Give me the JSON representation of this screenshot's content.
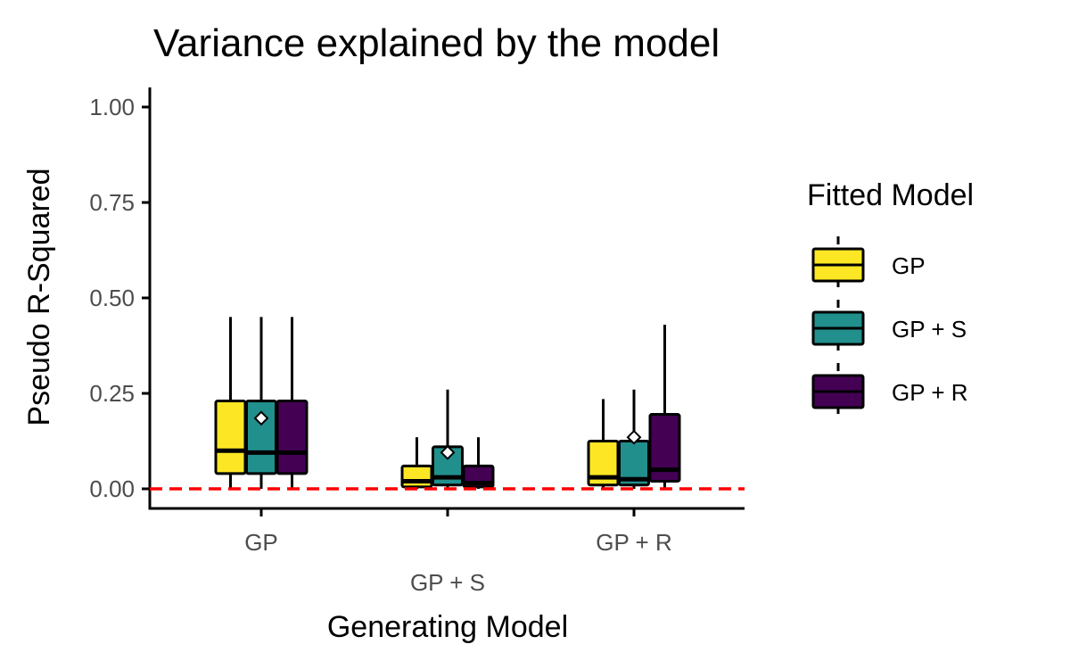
{
  "chart_data": {
    "type": "box",
    "title": "Variance explained by the model",
    "xlabel": "Generating Model",
    "ylabel": "Pseudo R-Squared",
    "ylim": [
      -0.05,
      1.05
    ],
    "yticks": [
      "0.00",
      "0.25",
      "0.50",
      "0.75",
      "1.00"
    ],
    "ytick_values": [
      0,
      0.25,
      0.5,
      0.75,
      1.0
    ],
    "categories": [
      "GP",
      "GP + S",
      "GP + R"
    ],
    "legend": {
      "title": "Fitted Model",
      "position": "right",
      "entries": [
        {
          "label": "GP",
          "color": "#FDE725"
        },
        {
          "label": "GP + S",
          "color": "#21908C"
        },
        {
          "label": "GP + R",
          "color": "#440154"
        }
      ]
    },
    "reference_line": {
      "y": 0.0,
      "color": "#FF0000",
      "style": "dashed"
    },
    "series": [
      {
        "name": "GP",
        "color": "#FDE725",
        "boxes": [
          {
            "min": 0.0,
            "q1": 0.04,
            "median": 0.1,
            "q3": 0.23,
            "max": 0.45
          },
          {
            "min": 0.0,
            "q1": 0.005,
            "median": 0.02,
            "q3": 0.06,
            "max": 0.135
          },
          {
            "min": 0.0,
            "q1": 0.01,
            "median": 0.03,
            "q3": 0.125,
            "max": 0.235
          }
        ]
      },
      {
        "name": "GP + S",
        "color": "#21908C",
        "boxes": [
          {
            "min": 0.0,
            "q1": 0.04,
            "median": 0.095,
            "q3": 0.23,
            "max": 0.45,
            "mean": 0.185
          },
          {
            "min": 0.0,
            "q1": 0.01,
            "median": 0.03,
            "q3": 0.11,
            "max": 0.26,
            "mean": 0.095
          },
          {
            "min": 0.0,
            "q1": 0.01,
            "median": 0.025,
            "q3": 0.125,
            "max": 0.26,
            "mean": 0.135
          }
        ]
      },
      {
        "name": "GP + R",
        "color": "#440154",
        "boxes": [
          {
            "min": 0.0,
            "q1": 0.04,
            "median": 0.095,
            "q3": 0.23,
            "max": 0.45
          },
          {
            "min": 0.0,
            "q1": 0.005,
            "median": 0.015,
            "q3": 0.06,
            "max": 0.135
          },
          {
            "min": 0.0,
            "q1": 0.02,
            "median": 0.05,
            "q3": 0.195,
            "max": 0.43
          }
        ]
      }
    ]
  }
}
